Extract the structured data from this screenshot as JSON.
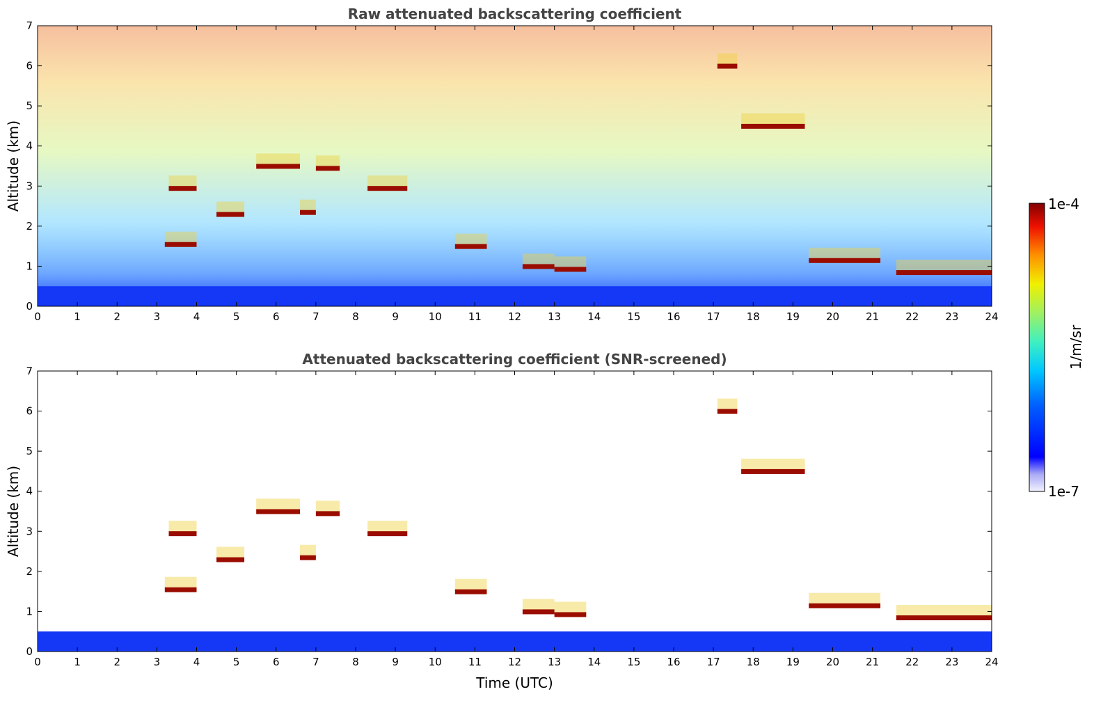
{
  "chart_data": {
    "type": "heatmap",
    "colorbar": {
      "label": "1/m/sr",
      "min_label": "1e-7",
      "max_label": "1e-4",
      "vmin": 1e-07,
      "vmax": 0.0001,
      "scale": "log",
      "colormap": "jet (white at lowest values)"
    },
    "panels": [
      {
        "title": "Raw attenuated backscattering coefficient",
        "xlabel": "",
        "ylabel": "Altitude (km)",
        "xlim": [
          0,
          24
        ],
        "ylim": [
          0,
          7
        ],
        "xticks": [
          "0",
          "1",
          "2",
          "3",
          "4",
          "5",
          "6",
          "7",
          "8",
          "9",
          "10",
          "11",
          "12",
          "13",
          "14",
          "15",
          "16",
          "17",
          "18",
          "19",
          "20",
          "21",
          "22",
          "23",
          "24"
        ],
        "yticks": [
          "0",
          "1",
          "2",
          "3",
          "4",
          "5",
          "6",
          "7"
        ],
        "features": [
          {
            "kind": "noise",
            "t0": 0,
            "t1": 24,
            "a0": 0,
            "a1": 7,
            "note": "noisy background increasing in value with altitude"
          },
          {
            "kind": "boundary_layer",
            "t0": 0,
            "t1": 24,
            "a0": 0,
            "a1": 0.5
          },
          {
            "kind": "cloud_layer",
            "t0": 3.3,
            "t1": 4.0,
            "altitude": 2.95
          },
          {
            "kind": "cloud_layer",
            "t0": 4.5,
            "t1": 5.2,
            "altitude": 2.3
          },
          {
            "kind": "cloud_layer",
            "t0": 5.5,
            "t1": 6.6,
            "altitude": 3.5
          },
          {
            "kind": "cloud_layer",
            "t0": 6.6,
            "t1": 7.0,
            "altitude": 2.35
          },
          {
            "kind": "cloud_layer",
            "t0": 3.2,
            "t1": 4.0,
            "altitude": 1.55
          },
          {
            "kind": "cloud_layer",
            "t0": 7.0,
            "t1": 7.6,
            "altitude": 3.45
          },
          {
            "kind": "cloud_layer",
            "t0": 8.3,
            "t1": 9.3,
            "altitude": 2.95
          },
          {
            "kind": "cloud_layer",
            "t0": 10.5,
            "t1": 11.3,
            "altitude": 1.5
          },
          {
            "kind": "cloud_layer",
            "t0": 12.2,
            "t1": 13.0,
            "altitude": 1.0
          },
          {
            "kind": "cloud_layer",
            "t0": 13.0,
            "t1": 13.8,
            "altitude": 0.93
          },
          {
            "kind": "cloud_layer",
            "t0": 17.7,
            "t1": 19.3,
            "altitude": 4.5
          },
          {
            "kind": "cloud_layer",
            "t0": 19.4,
            "t1": 21.2,
            "altitude": 1.15
          },
          {
            "kind": "cloud_layer",
            "t0": 21.6,
            "t1": 24.0,
            "altitude": 0.85
          },
          {
            "kind": "cloud_layer",
            "t0": 17.1,
            "t1": 17.6,
            "altitude": 6.0
          }
        ]
      },
      {
        "title": "Attenuated backscattering coefficient (SNR-screened)",
        "xlabel": "Time (UTC)",
        "ylabel": "Altitude (km)",
        "xlim": [
          0,
          24
        ],
        "ylim": [
          0,
          7
        ],
        "xticks": [
          "0",
          "1",
          "2",
          "3",
          "4",
          "5",
          "6",
          "7",
          "8",
          "9",
          "10",
          "11",
          "12",
          "13",
          "14",
          "15",
          "16",
          "17",
          "18",
          "19",
          "20",
          "21",
          "22",
          "23",
          "24"
        ],
        "yticks": [
          "0",
          "1",
          "2",
          "3",
          "4",
          "5",
          "6",
          "7"
        ],
        "features": [
          {
            "kind": "boundary_layer",
            "t0": 0,
            "t1": 24,
            "a0": 0,
            "a1": 0.5
          },
          {
            "kind": "cloud_layer",
            "t0": 3.3,
            "t1": 4.0,
            "altitude": 2.95
          },
          {
            "kind": "cloud_layer",
            "t0": 4.5,
            "t1": 5.2,
            "altitude": 2.3
          },
          {
            "kind": "cloud_layer",
            "t0": 5.5,
            "t1": 6.6,
            "altitude": 3.5
          },
          {
            "kind": "cloud_layer",
            "t0": 6.6,
            "t1": 7.0,
            "altitude": 2.35
          },
          {
            "kind": "cloud_layer",
            "t0": 3.2,
            "t1": 4.0,
            "altitude": 1.55
          },
          {
            "kind": "cloud_layer",
            "t0": 7.0,
            "t1": 7.6,
            "altitude": 3.45
          },
          {
            "kind": "cloud_layer",
            "t0": 8.3,
            "t1": 9.3,
            "altitude": 2.95
          },
          {
            "kind": "cloud_layer",
            "t0": 10.5,
            "t1": 11.3,
            "altitude": 1.5
          },
          {
            "kind": "cloud_layer",
            "t0": 12.2,
            "t1": 13.0,
            "altitude": 1.0
          },
          {
            "kind": "cloud_layer",
            "t0": 13.0,
            "t1": 13.8,
            "altitude": 0.93
          },
          {
            "kind": "cloud_layer",
            "t0": 17.7,
            "t1": 19.3,
            "altitude": 4.5
          },
          {
            "kind": "cloud_layer",
            "t0": 19.4,
            "t1": 21.2,
            "altitude": 1.15
          },
          {
            "kind": "cloud_layer",
            "t0": 21.6,
            "t1": 24.0,
            "altitude": 0.85
          },
          {
            "kind": "cloud_layer",
            "t0": 17.1,
            "t1": 17.6,
            "altitude": 6.0
          }
        ]
      }
    ]
  }
}
